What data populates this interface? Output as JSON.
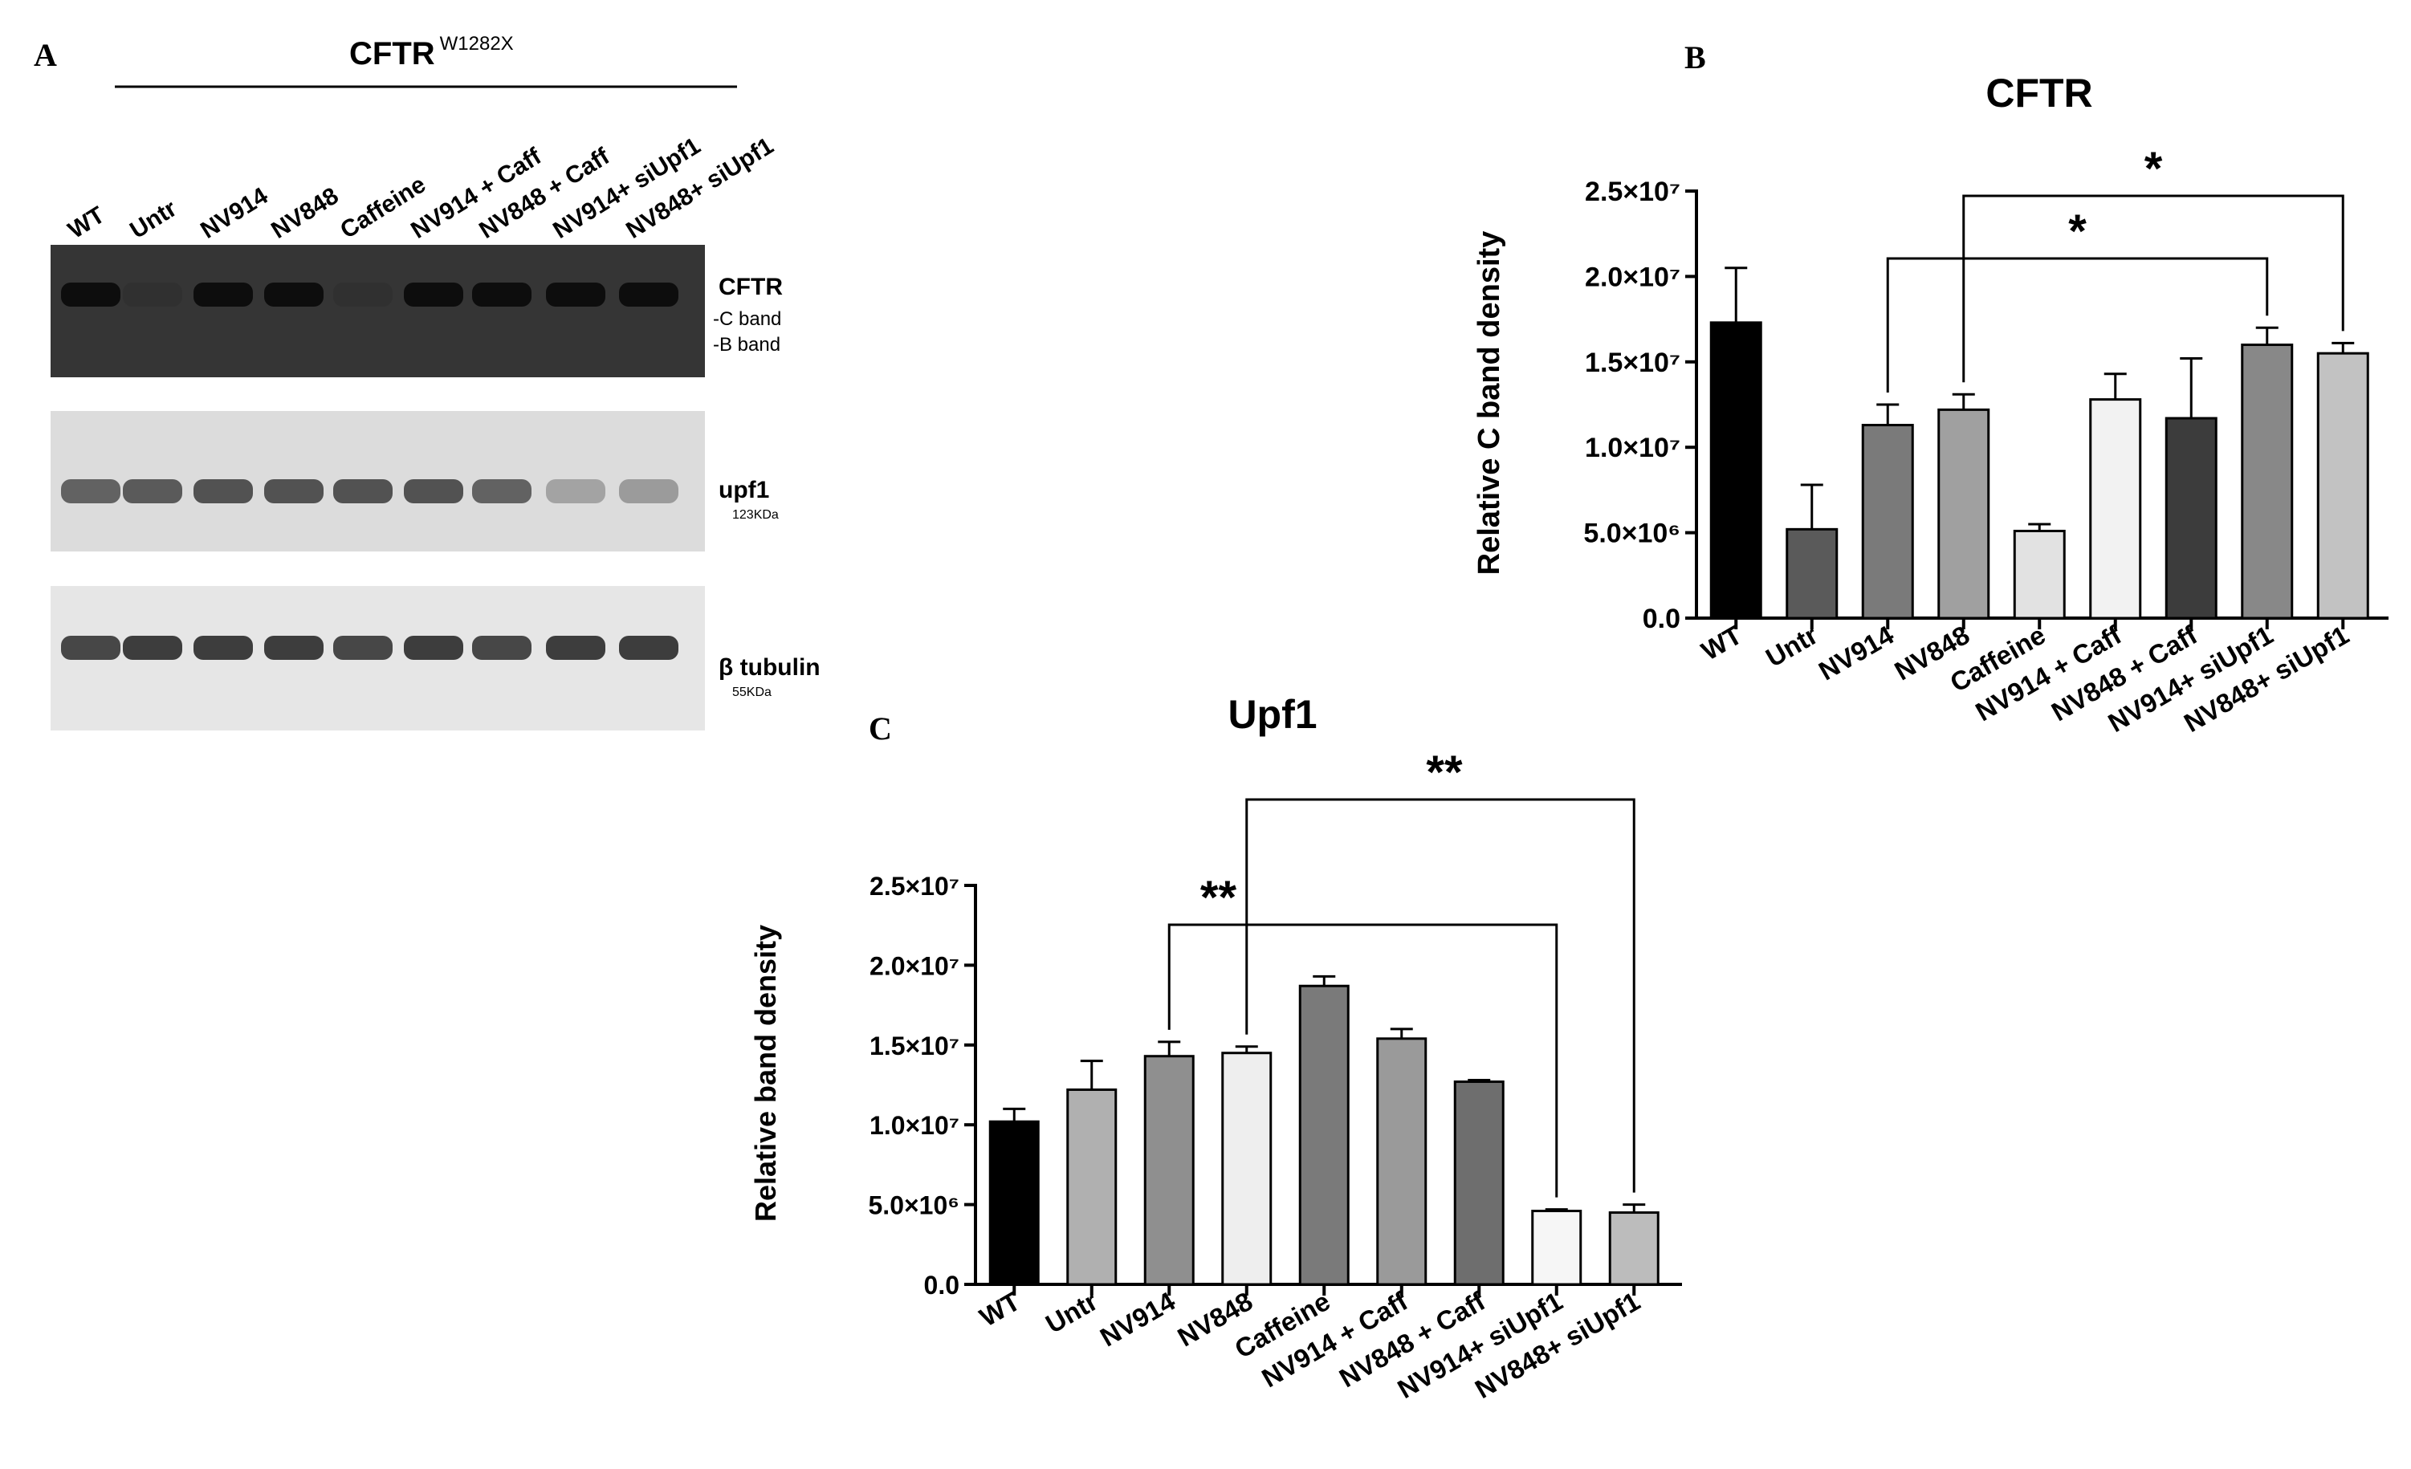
{
  "panel_a": {
    "letter": "A",
    "header_main": "CFTR",
    "header_sup": "W1282X",
    "lanes": [
      "WT",
      "Untr",
      "NV914",
      "NV848",
      "Caffeine",
      "NV914 + Caff",
      "NV848 + Caff",
      "NV914+ siUpf1",
      "NV848+ siUpf1"
    ],
    "blots": [
      {
        "name": "CFTR",
        "sub1": "-C band",
        "sub2": "-B band",
        "background": "#353535",
        "band_color": "#0d0d0d",
        "intensity": [
          1,
          0.12,
          1,
          1,
          0.1,
          1,
          1,
          1,
          1
        ]
      },
      {
        "name": "upf1",
        "sub1": "123KDa",
        "sub2": "",
        "background": "#dcdcdc",
        "band_color": "#3a3a3a",
        "intensity": [
          0.75,
          0.8,
          0.85,
          0.85,
          0.85,
          0.85,
          0.75,
          0.35,
          0.4
        ]
      },
      {
        "name": "β tubulin",
        "sub1": "55KDa",
        "sub2": "",
        "background": "#e6e6e6",
        "band_color": "#2a2a2a",
        "intensity": [
          0.85,
          0.9,
          0.9,
          0.9,
          0.85,
          0.9,
          0.85,
          0.9,
          0.9
        ]
      }
    ]
  },
  "chart_data": [
    {
      "panel": "B",
      "type": "bar",
      "title": "CFTR",
      "xlabel": "",
      "ylabel": "Relative  C band  density",
      "ylim": [
        0,
        25000000
      ],
      "yticks": [
        "0.0",
        "5.0×10⁶",
        "1.0×10⁷",
        "1.5×10⁷",
        "2.0×10⁷",
        "2.5×10⁷"
      ],
      "ytick_values": [
        0,
        5000000,
        10000000,
        15000000,
        20000000,
        25000000
      ],
      "categories": [
        "WT",
        "Untr",
        "NV914",
        "NV848",
        "Caffeine",
        "NV914 + Caff",
        "NV848 + Caff",
        "NV914+ siUpf1",
        "NV848+ siUpf1"
      ],
      "values": [
        17300000,
        5200000,
        11300000,
        12200000,
        5100000,
        12800000,
        11700000,
        16000000,
        15500000
      ],
      "errors": [
        3200000,
        2600000,
        1200000,
        900000,
        400000,
        1500000,
        3500000,
        1000000,
        600000
      ],
      "colors": [
        "#000000",
        "#5a5a5a",
        "#7a7a7a",
        "#a0a0a0",
        "#e2e2e2",
        "#f2f2f2",
        "#3c3c3c",
        "#888888",
        "#c2c2c2"
      ],
      "significance": [
        {
          "from": "NV914",
          "to": "NV914+ siUpf1",
          "label": "*"
        },
        {
          "from": "NV848",
          "to": "NV848+ siUpf1",
          "label": "*"
        }
      ]
    },
    {
      "panel": "C",
      "type": "bar",
      "title": "Upf1",
      "xlabel": "",
      "ylabel": "Relative band density",
      "ylim": [
        0,
        25000000
      ],
      "yticks": [
        "0.0",
        "5.0×10⁶",
        "1.0×10⁷",
        "1.5×10⁷",
        "2.0×10⁷",
        "2.5×10⁷"
      ],
      "ytick_values": [
        0,
        5000000,
        10000000,
        15000000,
        20000000,
        25000000
      ],
      "categories": [
        "WT",
        "Untr",
        "NV914",
        "NV848",
        "Caffeine",
        "NV914 + Caff",
        "NV848 + Caff",
        "NV914+ siUpf1",
        "NV848+ siUpf1"
      ],
      "values": [
        10200000,
        12200000,
        14300000,
        14500000,
        18700000,
        15400000,
        12700000,
        4600000,
        4500000
      ],
      "errors": [
        800000,
        1800000,
        900000,
        400000,
        600000,
        600000,
        100000,
        100000,
        500000
      ],
      "colors": [
        "#000000",
        "#b0b0b0",
        "#8f8f8f",
        "#eeeeee",
        "#7a7a7a",
        "#9a9a9a",
        "#6e6e6e",
        "#f6f6f6",
        "#bcbcbc"
      ],
      "significance": [
        {
          "from": "NV914",
          "to": "NV914+ siUpf1",
          "label": "**"
        },
        {
          "from": "NV848",
          "to": "NV848+ siUpf1",
          "label": "**"
        }
      ]
    }
  ]
}
